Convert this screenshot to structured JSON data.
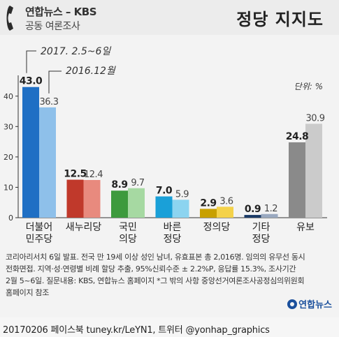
{
  "header": {
    "source_title": "연합뉴스 – KBS",
    "source_subtitle": "공동 여론조사"
  },
  "chart_data": {
    "type": "bar",
    "title": "정당 지지도",
    "unit_label": "단위: %",
    "categories": [
      "더불어\n민주당",
      "새누리당",
      "국민\n의당",
      "바른\n정당",
      "정의당",
      "기타\n정당",
      "유보"
    ],
    "series": [
      {
        "name": "2017. 2.5~6일",
        "values": [
          43.0,
          12.5,
          8.9,
          7.0,
          2.9,
          0.9,
          24.8
        ]
      },
      {
        "name": "2016.12월",
        "values": [
          36.3,
          12.4,
          9.7,
          5.9,
          3.6,
          1.2,
          30.9
        ]
      }
    ],
    "value_labels": [
      [
        "43.0",
        "12.5",
        "8.9",
        "7.0",
        "2.9",
        "0.9",
        "24.8"
      ],
      [
        "36.3",
        "12.4",
        "9.7",
        "5.9",
        "3.6",
        "1.2",
        "30.9"
      ]
    ],
    "yticks": [
      "0",
      "10",
      "20",
      "30",
      "40"
    ],
    "ylim": [
      0,
      45
    ],
    "grid": false,
    "colors": {
      "current": [
        "#1f6fc4",
        "#c0392b",
        "#3d9a3d",
        "#1aa0d8",
        "#c8a000",
        "#1a3a66",
        "#8a8a8a"
      ],
      "previous": [
        "#8ec0ea",
        "#e88a7e",
        "#a6d9a2",
        "#8cd4f0",
        "#f4d24a",
        "#9aa9c0",
        "#cbcbcb"
      ]
    }
  },
  "notes": [
    "코리아리서치 6일 발표. 전국 만 19세 이상 성인 남녀, 유효표본 총 2,016명. 임의의 유무선 동시",
    "전화면접. 지역·성·연령별 비례 할당 추출, 95%신뢰수준 ± 2.2%P, 응답률 15.3%, 조사기간",
    "2월 5~6일. 질문내용: KBS, 연합뉴스 홈페이지  *그 밖의 사항 중앙선거여론조사공정심의위원회",
    "홈페이지 참조"
  ],
  "logo_text": "연합뉴스",
  "footer": "20170206  페이스북 tuney.kr/LeYN1, 트위터 @yonhap_graphics"
}
